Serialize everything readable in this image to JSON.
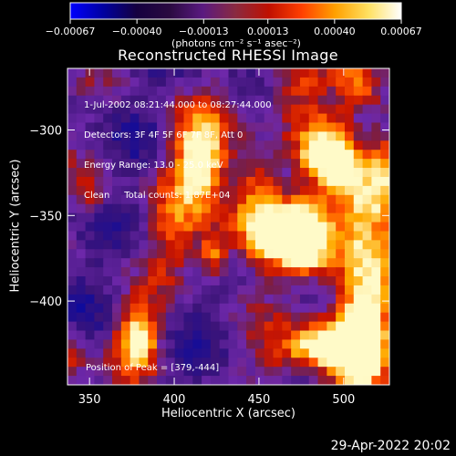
{
  "chart_data": {
    "type": "heatmap",
    "title": "Reconstructed RHESSI Image",
    "xlabel": "Heliocentric X (arcsec)",
    "ylabel": "Heliocentric Y (arcsec)",
    "xlim": [
      337,
      527
    ],
    "ylim": [
      -449,
      -264
    ],
    "x_ticks": [
      "350",
      "400",
      "450",
      "500"
    ],
    "x_tick_values": [
      350,
      400,
      450,
      500
    ],
    "y_ticks": [
      "−300",
      "−350",
      "−400"
    ],
    "y_tick_values": [
      -300,
      -350,
      -400
    ],
    "colorbar": {
      "ticks": [
        "−0.00067",
        "−0.00040",
        "−0.00013",
        "0.00013",
        "0.00040",
        "0.00067"
      ],
      "tick_values": [
        -0.00067,
        -0.0004,
        -0.00013,
        0.00013,
        0.0004,
        0.00067
      ],
      "units": "(photons cm⁻² s⁻¹ asec⁻²)",
      "colors": [
        "#0000ff",
        "#0000a0",
        "#150040",
        "#2a0a40",
        "#5a1a80",
        "#8a2a40",
        "#c01000",
        "#ff4000",
        "#ffa000",
        "#ffe060",
        "#ffffff"
      ]
    },
    "annotations": [
      "1-Jul-2002 08:21:44.000 to 08:27:44.000",
      "Detectors: 3F 4F 5F 6F 7F 8F, Att 0",
      "Energy Range: 13.0 - 25.0 keV",
      "Clean     Total counts: 1.87E+04"
    ],
    "peak_label": "Position of Peak = [379,-444]",
    "peak_position": [
      379,
      -444
    ],
    "grid": false
  },
  "footer": {
    "date": "29-Apr-2022 20:02"
  }
}
